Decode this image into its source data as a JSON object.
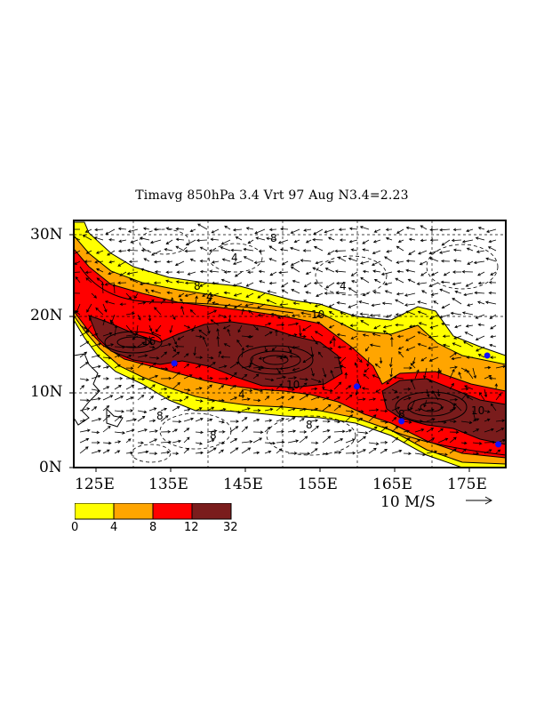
{
  "title": "Timavg 850hPa 3.4 Vrt 97 Aug N3.4=2.23",
  "y_axis_labels": [
    "30N",
    "20N",
    "10N",
    "0N"
  ],
  "x_axis_labels": [
    "125E",
    "135E",
    "145E",
    "155E",
    "165E",
    "175E"
  ],
  "vector_scale": {
    "label": "10 M/S",
    "arrow": "→"
  },
  "colorbar": {
    "tick_labels": [
      "0",
      "4",
      "8",
      "12",
      "32"
    ],
    "bins": [
      {
        "range": [
          0,
          4
        ],
        "color": "#ffff00"
      },
      {
        "range": [
          4,
          8
        ],
        "color": "#ffa500"
      },
      {
        "range": [
          8,
          12
        ],
        "color": "#ff0000"
      },
      {
        "range": [
          12,
          32
        ],
        "color": "#7a1c1c"
      }
    ]
  },
  "contour_labels": [
    "4",
    "8",
    "10",
    "16",
    "10",
    "4",
    "8",
    "8",
    "10",
    "4",
    "8",
    "8",
    "4",
    "8"
  ],
  "map_extent": {
    "lon": [
      122,
      180
    ],
    "lat": [
      0,
      32
    ]
  },
  "markers": [
    {
      "name": "typhoon-dot",
      "lon": 135.5,
      "lat": 13.5
    },
    {
      "name": "typhoon-dot",
      "lon": 160,
      "lat": 10.5
    },
    {
      "name": "typhoon-dot",
      "lon": 166,
      "lat": 6
    },
    {
      "name": "typhoon-dot",
      "lon": 177.5,
      "lat": 14.5
    },
    {
      "name": "typhoon-dot",
      "lon": 179,
      "lat": 3
    }
  ]
}
